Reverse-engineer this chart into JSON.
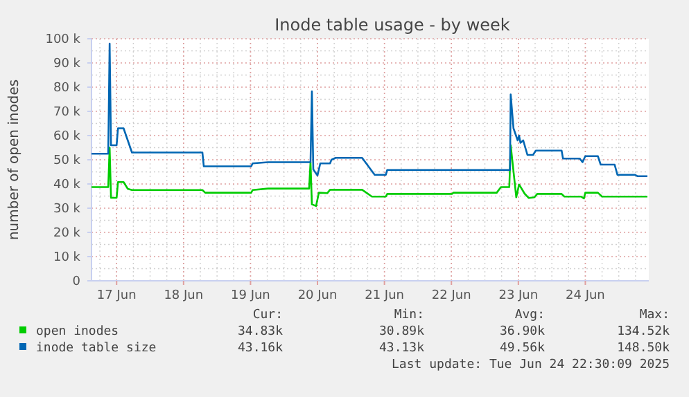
{
  "chart_data": {
    "type": "line",
    "title": "Inode table usage - by week",
    "ylabel": "number of open inodes",
    "xlim": [
      "2025-06-16T15:00",
      "2025-06-24T22:45"
    ],
    "xticks": [
      {
        "value": "2025-06-17",
        "label": "17 Jun"
      },
      {
        "value": "2025-06-18",
        "label": "18 Jun"
      },
      {
        "value": "2025-06-19",
        "label": "19 Jun"
      },
      {
        "value": "2025-06-20",
        "label": "20 Jun"
      },
      {
        "value": "2025-06-21",
        "label": "21 Jun"
      },
      {
        "value": "2025-06-22",
        "label": "22 Jun"
      },
      {
        "value": "2025-06-23",
        "label": "23 Jun"
      },
      {
        "value": "2025-06-24",
        "label": "24 Jun"
      }
    ],
    "ylim": [
      0,
      100000
    ],
    "yticks": [
      0,
      {
        "value": 10000,
        "label": "10 k"
      },
      {
        "value": 20000,
        "label": "20 k"
      },
      {
        "value": 30000,
        "label": "30 k"
      },
      {
        "value": 40000,
        "label": "40 k"
      },
      {
        "value": 50000,
        "label": "50 k"
      },
      {
        "value": 60000,
        "label": "60 k"
      },
      {
        "value": 70000,
        "label": "70 k"
      },
      {
        "value": 80000,
        "label": "80 k"
      },
      {
        "value": 90000,
        "label": "90 k"
      },
      {
        "value": 100000,
        "label": "100 k"
      }
    ],
    "grid": true,
    "legend": "bottom",
    "marker": "none",
    "line_style": "solid",
    "series": [
      {
        "name": "open inodes",
        "color": "#00cc00",
        "x": [
          "2025-06-16T15:00",
          "2025-06-16T21:00",
          "2025-06-16T21:30",
          "2025-06-16T22:00",
          "2025-06-17T00:00",
          "2025-06-17T00:30",
          "2025-06-17T02:30",
          "2025-06-17T04:00",
          "2025-06-17T05:30",
          "2025-06-18T06:45",
          "2025-06-18T07:45",
          "2025-06-19T00:15",
          "2025-06-19T00:45",
          "2025-06-19T06:15",
          "2025-06-19T21:00",
          "2025-06-19T21:30",
          "2025-06-19T22:00",
          "2025-06-19T23:30",
          "2025-06-20T00:30",
          "2025-06-20T03:30",
          "2025-06-20T04:30",
          "2025-06-20T16:00",
          "2025-06-20T19:30",
          "2025-06-21T00:30",
          "2025-06-21T01:00",
          "2025-06-22T00:15",
          "2025-06-22T00:45",
          "2025-06-22T16:15",
          "2025-06-22T17:45",
          "2025-06-22T20:45",
          "2025-06-22T21:15",
          "2025-06-22T23:15",
          "2025-06-23T00:15",
          "2025-06-23T02:15",
          "2025-06-23T03:45",
          "2025-06-23T05:45",
          "2025-06-23T06:45",
          "2025-06-23T15:30",
          "2025-06-23T16:30",
          "2025-06-23T22:30",
          "2025-06-23T23:30",
          "2025-06-24T00:00",
          "2025-06-24T04:30",
          "2025-06-24T06:00",
          "2025-06-24T22:15"
        ],
        "values": [
          38700,
          38700,
          55000,
          34300,
          34300,
          40800,
          40800,
          38000,
          37500,
          37500,
          36400,
          36400,
          37500,
          38100,
          38100,
          49000,
          31600,
          30900,
          36400,
          36200,
          37600,
          37600,
          34800,
          34800,
          35900,
          35900,
          36400,
          36400,
          38700,
          38700,
          56000,
          34500,
          39800,
          36000,
          34200,
          34500,
          35900,
          35900,
          34800,
          34800,
          34000,
          36400,
          36400,
          34800,
          34800
        ]
      },
      {
        "name": "inode table size",
        "color": "#0066b3",
        "x": [
          "2025-06-16T15:00",
          "2025-06-16T21:00",
          "2025-06-16T21:30",
          "2025-06-16T22:00",
          "2025-06-17T00:00",
          "2025-06-17T00:30",
          "2025-06-17T02:30",
          "2025-06-17T04:00",
          "2025-06-17T05:30",
          "2025-06-18T06:45",
          "2025-06-18T07:15",
          "2025-06-19T00:15",
          "2025-06-19T00:45",
          "2025-06-19T06:15",
          "2025-06-19T21:30",
          "2025-06-19T22:00",
          "2025-06-19T22:30",
          "2025-06-20T00:00",
          "2025-06-20T01:00",
          "2025-06-20T04:30",
          "2025-06-20T05:00",
          "2025-06-20T06:30",
          "2025-06-20T16:00",
          "2025-06-20T20:30",
          "2025-06-21T00:30",
          "2025-06-21T01:00",
          "2025-06-22T21:00",
          "2025-06-22T21:15",
          "2025-06-22T22:15",
          "2025-06-22T23:45",
          "2025-06-23T00:15",
          "2025-06-23T00:45",
          "2025-06-23T01:45",
          "2025-06-23T03:15",
          "2025-06-23T05:15",
          "2025-06-23T06:15",
          "2025-06-23T15:30",
          "2025-06-23T16:00",
          "2025-06-23T22:00",
          "2025-06-23T23:00",
          "2025-06-24T00:00",
          "2025-06-24T04:30",
          "2025-06-24T05:30",
          "2025-06-24T10:30",
          "2025-06-24T11:30",
          "2025-06-24T17:45",
          "2025-06-24T18:45",
          "2025-06-24T22:15"
        ],
        "values": [
          52500,
          52500,
          98000,
          56000,
          56000,
          63000,
          63000,
          58000,
          53000,
          53000,
          47300,
          47300,
          48500,
          49000,
          49000,
          78300,
          46000,
          43500,
          48500,
          48500,
          50000,
          50800,
          50800,
          43800,
          43800,
          45800,
          45800,
          77000,
          63000,
          58000,
          60000,
          57000,
          58000,
          52000,
          52000,
          53800,
          53800,
          50500,
          50500,
          49000,
          51500,
          51500,
          48000,
          48000,
          43800,
          43800,
          43200,
          43200
        ]
      }
    ],
    "annotations": [
      "Cur:",
      "Min:",
      "Avg:",
      "Max:",
      "34.83k",
      "30.89k",
      "36.90k",
      "134.52k",
      "43.16k",
      "43.13k",
      "49.56k",
      "148.50k",
      "Last update: Tue Jun 24 22:30:09 2025"
    ]
  }
}
